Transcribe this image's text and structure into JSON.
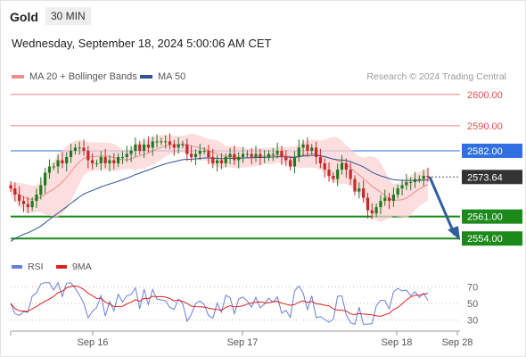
{
  "header": {
    "asset": "Gold",
    "timeframe": "30 MIN",
    "datetime": "Wednesday, September 18, 2024 5:00:06 AM CET",
    "credit": "Research © 2024 Trading Central"
  },
  "legend": {
    "bb": {
      "label": "MA 20 + Bollinger Bands",
      "color": "#f28b8b"
    },
    "ma50": {
      "label": "MA 50",
      "color": "#2f5597"
    }
  },
  "rsi_legend": {
    "rsi": {
      "label": "RSI",
      "color": "#6a7fd8"
    },
    "ma9": {
      "label": "9MA",
      "color": "#e02020"
    }
  },
  "chart_data": [
    {
      "type": "candlestick",
      "x_labels": [
        "Sep 16",
        "Sep 17",
        "Sep 18",
        "Sep 28"
      ],
      "ylim": [
        2551.5,
        2602.5
      ],
      "levels": [
        {
          "value": 2600.0,
          "label": "2600.00",
          "kind": "resistance",
          "color": "#f08080"
        },
        {
          "value": 2590.0,
          "label": "2590.00",
          "kind": "resistance",
          "color": "#f08080"
        },
        {
          "value": 2582.0,
          "label": "2582.00",
          "kind": "pivot",
          "color": "#2f6fdf"
        },
        {
          "value": 2573.64,
          "label": "2573.64",
          "kind": "last",
          "color": "#333333"
        },
        {
          "value": 2561.0,
          "label": "2561.00",
          "kind": "support",
          "color": "#1b8a1b"
        },
        {
          "value": 2554.0,
          "label": "2554.00",
          "kind": "support",
          "color": "#1b8a1b"
        }
      ],
      "close": [
        2570,
        2568,
        2566,
        2565,
        2564,
        2566,
        2568,
        2571,
        2575,
        2577,
        2577,
        2579,
        2578,
        2580,
        2582,
        2583,
        2583,
        2582,
        2579,
        2578,
        2578,
        2580,
        2578,
        2579,
        2578,
        2580,
        2580,
        2581,
        2582,
        2584,
        2582,
        2584,
        2583,
        2585,
        2585,
        2585,
        2585,
        2584,
        2583,
        2584,
        2584,
        2581,
        2580,
        2581,
        2582,
        2582,
        2580,
        2578,
        2579,
        2578,
        2580,
        2581,
        2579,
        2580,
        2581,
        2581,
        2580,
        2581,
        2580,
        2580,
        2581,
        2581,
        2582,
        2580,
        2579,
        2577,
        2580,
        2583,
        2584,
        2582,
        2583,
        2580,
        2578,
        2576,
        2574,
        2573,
        2576,
        2578,
        2576,
        2573,
        2569,
        2570,
        2567,
        2563,
        2562,
        2564,
        2566,
        2567,
        2566,
        2568,
        2570,
        2571,
        2572,
        2572,
        2573,
        2573,
        2574,
        2573.64
      ],
      "projection": {
        "from": 2573.64,
        "to": 2554.0
      },
      "ma50_start": 2552,
      "rsi_ylim": [
        20,
        80
      ],
      "rsi_levels": [
        70,
        50,
        30
      ]
    }
  ]
}
